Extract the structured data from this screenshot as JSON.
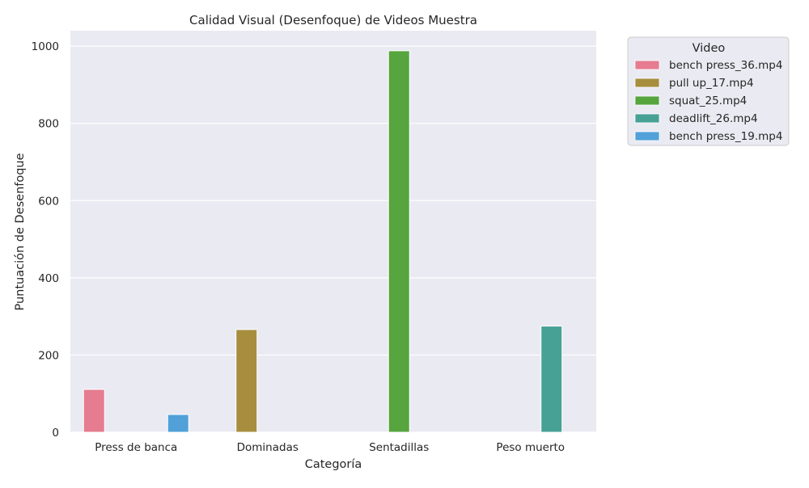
{
  "chart_data": {
    "type": "bar",
    "title": "Calidad Visual (Desenfoque) de Videos Muestra",
    "xlabel": "Categoría",
    "ylabel": "Puntuación de Desenfoque",
    "categories": [
      "Press de banca",
      "Dominadas",
      "Sentadillas",
      "Peso muerto"
    ],
    "ylim": [
      0,
      1040
    ],
    "yticks": [
      0,
      200,
      400,
      600,
      800,
      1000
    ],
    "grid": true,
    "legend": {
      "title": "Video",
      "placement": "outside-top-right"
    },
    "series": [
      {
        "name": "bench press_36.mp4",
        "color": "#e57c90",
        "values": [
          111,
          null,
          null,
          null
        ]
      },
      {
        "name": "pull up_17.mp4",
        "color": "#a78e3f",
        "values": [
          null,
          266,
          null,
          null
        ]
      },
      {
        "name": "squat_25.mp4",
        "color": "#56a53f",
        "values": [
          null,
          null,
          988,
          null
        ]
      },
      {
        "name": "deadlift_26.mp4",
        "color": "#47a195",
        "values": [
          null,
          null,
          null,
          275
        ]
      },
      {
        "name": "bench press_19.mp4",
        "color": "#51a1d8",
        "values": [
          46,
          null,
          null,
          null
        ]
      }
    ]
  }
}
